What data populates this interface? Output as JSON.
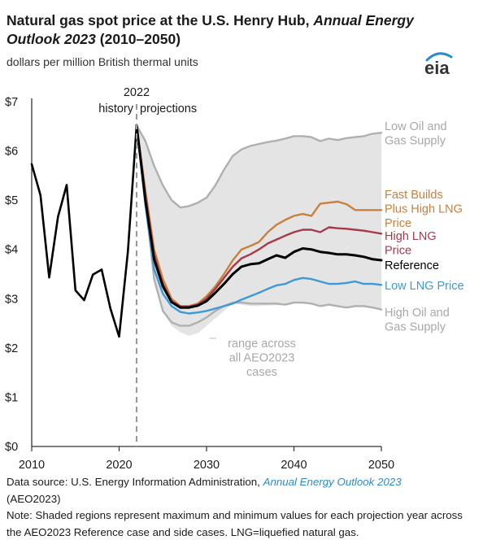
{
  "header": {
    "title_part1": "Natural gas spot price at the U.S. Henry Hub, ",
    "title_italic": "Annual Energy Outlook 2023",
    "title_part2": " (2010–2050)",
    "subtitle": "dollars per million British thermal units",
    "logo_text": "eia"
  },
  "annotations": {
    "year_marker": "2022",
    "history": "history",
    "projections": "projections",
    "range": [
      "range across",
      "all AEO2023",
      "cases"
    ]
  },
  "footer": {
    "source_prefix": "Data source: U.S. Energy Information Administration, ",
    "source_link": "Annual Energy Outlook 2023",
    "source_suffix": "(AEO2023)",
    "note": "Note: Shaded regions represent maximum and minimum values for each projection year across the AEO2023 Reference case and side cases. LNG=liquefied natural gas."
  },
  "colors": {
    "history": "#000000",
    "reference": "#000000",
    "fast_builds": "#c8803f",
    "high_lng": "#a63a4a",
    "low_lng": "#3b9ad8",
    "high_oil": "#b0b0b0",
    "low_oil": "#b0b0b0",
    "range_fill": "#e4e4e4",
    "axis": "#333333"
  },
  "chart_data": {
    "type": "line",
    "xlim": [
      2010,
      2050
    ],
    "ylim": [
      0,
      7
    ],
    "x_ticks": [
      2010,
      2020,
      2030,
      2040,
      2050
    ],
    "x_tick_labels": [
      "2010",
      "2020",
      "2030",
      "2040",
      "2050"
    ],
    "y_ticks": [
      0,
      1,
      2,
      3,
      4,
      5,
      6,
      7
    ],
    "y_tick_labels": [
      "$0",
      "$1",
      "$2",
      "$3",
      "$4",
      "$5",
      "$6",
      "$7"
    ],
    "grid": false,
    "legend": "direct labels at right",
    "divider_year": 2022,
    "range_band": {
      "x": [
        2022,
        2023,
        2024,
        2025,
        2026,
        2027,
        2028,
        2029,
        2030,
        2031,
        2032,
        2033,
        2034,
        2035,
        2036,
        2037,
        2038,
        2039,
        2040,
        2041,
        2042,
        2043,
        2044,
        2045,
        2046,
        2047,
        2048,
        2049,
        2050
      ],
      "upper": [
        6.52,
        6.2,
        5.7,
        5.3,
        5.0,
        4.85,
        4.88,
        4.95,
        5.05,
        5.3,
        5.62,
        5.9,
        6.03,
        6.1,
        6.14,
        6.18,
        6.21,
        6.25,
        6.3,
        6.3,
        6.28,
        6.2,
        6.25,
        6.22,
        6.26,
        6.28,
        6.3,
        6.35,
        6.37
      ],
      "lower": [
        6.52,
        5.0,
        3.4,
        2.75,
        2.45,
        2.32,
        2.25,
        2.3,
        2.45,
        2.6,
        2.75,
        2.9,
        2.88,
        2.85,
        2.85,
        2.86,
        2.87,
        2.86,
        2.9,
        2.9,
        2.9,
        2.85,
        2.88,
        2.85,
        2.82,
        2.85,
        2.85,
        2.82,
        2.78
      ]
    },
    "history": {
      "x": [
        2010,
        2011,
        2012,
        2013,
        2014,
        2015,
        2016,
        2017,
        2018,
        2019,
        2020,
        2021,
        2022
      ],
      "values": [
        5.73,
        5.1,
        3.43,
        4.66,
        5.31,
        3.17,
        2.97,
        3.49,
        3.59,
        2.8,
        2.23,
        3.96,
        6.52
      ]
    },
    "series": [
      {
        "name": "Low Oil and Gas Supply",
        "label_lines": [
          "Low Oil and",
          "Gas Supply"
        ],
        "color_key": "low_oil",
        "x": [
          2022,
          2023,
          2024,
          2025,
          2026,
          2027,
          2028,
          2029,
          2030,
          2031,
          2032,
          2033,
          2034,
          2035,
          2036,
          2037,
          2038,
          2039,
          2040,
          2041,
          2042,
          2043,
          2044,
          2045,
          2046,
          2047,
          2048,
          2049,
          2050
        ],
        "values": [
          6.52,
          6.2,
          5.7,
          5.3,
          5.0,
          4.85,
          4.88,
          4.95,
          5.05,
          5.3,
          5.62,
          5.9,
          6.03,
          6.1,
          6.14,
          6.18,
          6.21,
          6.25,
          6.3,
          6.3,
          6.28,
          6.2,
          6.25,
          6.22,
          6.26,
          6.28,
          6.3,
          6.35,
          6.37
        ]
      },
      {
        "name": "Fast Builds Plus High LNG Price",
        "label_lines": [
          "Fast Builds",
          "Plus High LNG",
          "Price"
        ],
        "color_key": "fast_builds",
        "x": [
          2022,
          2023,
          2024,
          2025,
          2026,
          2027,
          2028,
          2029,
          2030,
          2031,
          2032,
          2033,
          2034,
          2035,
          2036,
          2037,
          2038,
          2039,
          2040,
          2041,
          2042,
          2043,
          2044,
          2045,
          2046,
          2047,
          2048,
          2049,
          2050
        ],
        "values": [
          6.52,
          5.2,
          4.0,
          3.4,
          3.0,
          2.85,
          2.85,
          2.9,
          3.05,
          3.25,
          3.5,
          3.78,
          4.0,
          4.07,
          4.15,
          4.35,
          4.5,
          4.6,
          4.68,
          4.72,
          4.68,
          4.93,
          4.95,
          4.97,
          4.92,
          4.8,
          4.8,
          4.8,
          4.8
        ]
      },
      {
        "name": "High LNG Price",
        "label_lines": [
          "High LNG",
          "Price"
        ],
        "color_key": "high_lng",
        "x": [
          2022,
          2023,
          2024,
          2025,
          2026,
          2027,
          2028,
          2029,
          2030,
          2031,
          2032,
          2033,
          2034,
          2035,
          2036,
          2037,
          2038,
          2039,
          2040,
          2041,
          2042,
          2043,
          2044,
          2045,
          2046,
          2047,
          2048,
          2049,
          2050
        ],
        "values": [
          6.52,
          5.1,
          3.9,
          3.3,
          2.95,
          2.84,
          2.84,
          2.88,
          3.0,
          3.2,
          3.42,
          3.65,
          3.82,
          3.9,
          4.0,
          4.12,
          4.2,
          4.28,
          4.35,
          4.4,
          4.4,
          4.35,
          4.45,
          4.43,
          4.42,
          4.4,
          4.38,
          4.35,
          4.32
        ]
      },
      {
        "name": "Reference",
        "label_lines": [
          "Reference"
        ],
        "color_key": "reference",
        "x": [
          2022,
          2023,
          2024,
          2025,
          2026,
          2027,
          2028,
          2029,
          2030,
          2031,
          2032,
          2033,
          2034,
          2035,
          2036,
          2037,
          2038,
          2039,
          2040,
          2041,
          2042,
          2043,
          2044,
          2045,
          2046,
          2047,
          2048,
          2049,
          2050
        ],
        "values": [
          6.52,
          5.0,
          3.8,
          3.25,
          2.93,
          2.82,
          2.82,
          2.86,
          2.95,
          3.12,
          3.3,
          3.5,
          3.65,
          3.7,
          3.72,
          3.8,
          3.88,
          3.83,
          3.95,
          4.02,
          4.0,
          3.95,
          3.93,
          3.9,
          3.9,
          3.88,
          3.85,
          3.8,
          3.78
        ]
      },
      {
        "name": "Low LNG Price",
        "label_lines": [
          "Low LNG Price"
        ],
        "color_key": "low_lng",
        "x": [
          2022,
          2023,
          2024,
          2025,
          2026,
          2027,
          2028,
          2029,
          2030,
          2031,
          2032,
          2033,
          2034,
          2035,
          2036,
          2037,
          2038,
          2039,
          2040,
          2041,
          2042,
          2043,
          2044,
          2045,
          2046,
          2047,
          2048,
          2049,
          2050
        ],
        "values": [
          6.52,
          4.9,
          3.6,
          3.1,
          2.85,
          2.73,
          2.7,
          2.72,
          2.75,
          2.8,
          2.85,
          2.9,
          2.98,
          3.05,
          3.12,
          3.2,
          3.27,
          3.3,
          3.38,
          3.42,
          3.4,
          3.35,
          3.3,
          3.3,
          3.32,
          3.35,
          3.3,
          3.3,
          3.28
        ]
      },
      {
        "name": "High Oil and Gas Supply",
        "label_lines": [
          "High Oil and",
          "Gas Supply"
        ],
        "color_key": "high_oil",
        "x": [
          2022,
          2023,
          2024,
          2025,
          2026,
          2027,
          2028,
          2029,
          2030,
          2031,
          2032,
          2033,
          2034,
          2035,
          2036,
          2037,
          2038,
          2039,
          2040,
          2041,
          2042,
          2043,
          2044,
          2045,
          2046,
          2047,
          2048,
          2049,
          2050
        ],
        "values": [
          6.52,
          5.0,
          3.4,
          2.75,
          2.52,
          2.45,
          2.45,
          2.52,
          2.62,
          2.75,
          2.85,
          2.92,
          2.92,
          2.9,
          2.9,
          2.9,
          2.9,
          2.88,
          2.92,
          2.92,
          2.9,
          2.85,
          2.88,
          2.85,
          2.82,
          2.85,
          2.85,
          2.82,
          2.78
        ]
      }
    ]
  }
}
